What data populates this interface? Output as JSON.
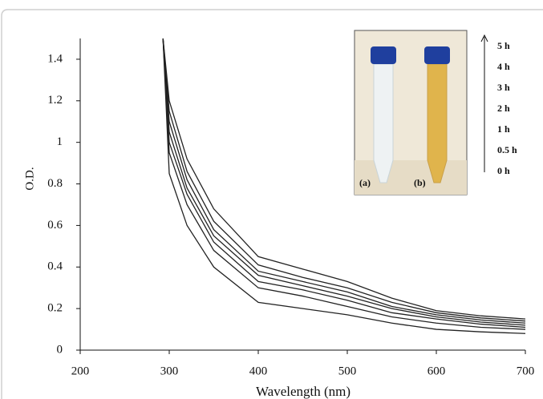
{
  "chart_data": {
    "type": "line",
    "x_label": "Wavelength (nm)",
    "y_label": "O.D.",
    "x": [
      293,
      300,
      320,
      350,
      400,
      450,
      500,
      550,
      600,
      650,
      700
    ],
    "series": [
      {
        "name": "5 h",
        "color": "#222222",
        "values": [
          1.5,
          1.2,
          0.92,
          0.68,
          0.45,
          0.39,
          0.33,
          0.25,
          0.19,
          0.165,
          0.15
        ]
      },
      {
        "name": "4 h",
        "color": "#222222",
        "values": [
          1.5,
          1.15,
          0.86,
          0.62,
          0.41,
          0.35,
          0.3,
          0.23,
          0.18,
          0.155,
          0.14
        ]
      },
      {
        "name": "3 h",
        "color": "#222222",
        "values": [
          1.5,
          1.1,
          0.82,
          0.58,
          0.38,
          0.33,
          0.28,
          0.21,
          0.17,
          0.145,
          0.13
        ]
      },
      {
        "name": "2 h",
        "color": "#222222",
        "values": [
          1.5,
          1.05,
          0.78,
          0.55,
          0.36,
          0.31,
          0.26,
          0.2,
          0.16,
          0.135,
          0.12
        ]
      },
      {
        "name": "1 h",
        "color": "#222222",
        "values": [
          1.5,
          1.0,
          0.75,
          0.52,
          0.33,
          0.29,
          0.24,
          0.18,
          0.15,
          0.125,
          0.11
        ]
      },
      {
        "name": "0.5 h",
        "color": "#222222",
        "values": [
          1.5,
          0.95,
          0.7,
          0.48,
          0.3,
          0.26,
          0.21,
          0.16,
          0.13,
          0.11,
          0.1
        ]
      },
      {
        "name": "0 h",
        "color": "#222222",
        "values": [
          1.5,
          0.85,
          0.6,
          0.4,
          0.23,
          0.2,
          0.17,
          0.13,
          0.1,
          0.088,
          0.08
        ]
      }
    ],
    "xlim": [
      200,
      700
    ],
    "xticks": [
      200,
      300,
      400,
      500,
      600,
      700
    ],
    "ylim": [
      0,
      1.5
    ],
    "yticks": [
      0,
      0.2,
      0.4,
      0.6,
      0.8,
      1,
      1.2,
      1.4
    ],
    "inset_labels": [
      "(a)",
      "(b)"
    ]
  }
}
